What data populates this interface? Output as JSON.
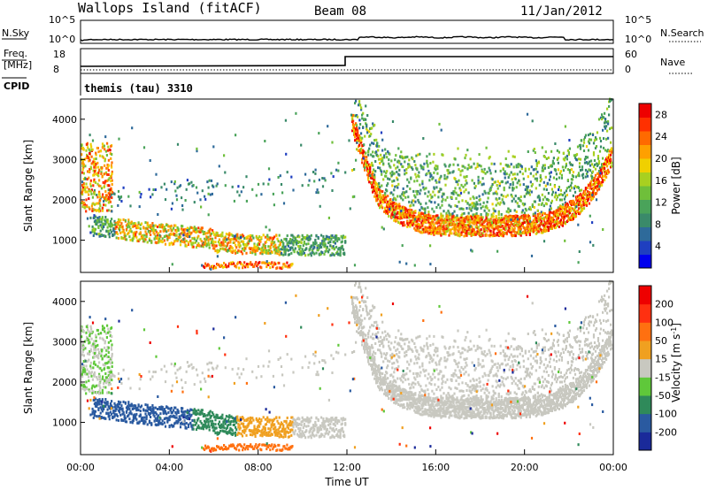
{
  "header": {
    "station": "Wallops Island (fitACF)",
    "beam": "Beam 08",
    "date": "11/Jan/2012"
  },
  "noise_panel": {
    "left_label": "N.Sky",
    "right_label": "N.Search",
    "ticks": [
      "10^5",
      "10^0"
    ]
  },
  "freq_panel": {
    "left_label_top": "Freq.",
    "left_label_bottom": "[MHz]",
    "left_ticks": [
      "18",
      "8"
    ],
    "right_label": "Nave",
    "right_ticks": [
      "60",
      "0"
    ],
    "cpid_label": "CPID",
    "cpid_text": "themis (tau) 3310"
  },
  "chart_data": [
    {
      "type": "heatmap",
      "name": "power",
      "ylabel": "Slant Range [km]",
      "xlabel": "",
      "ylim": [
        200,
        4500
      ],
      "xlim": [
        0,
        24
      ],
      "yticks": [
        "4000",
        "3000",
        "2000",
        "1000"
      ],
      "ytick_values": [
        4000,
        3000,
        2000,
        1000
      ],
      "colorbar": {
        "label": "Power [dB]",
        "ticks": [
          "28",
          "24",
          "20",
          "16",
          "12",
          "8",
          "4"
        ],
        "tick_values": [
          28,
          24,
          20,
          16,
          12,
          8,
          4
        ],
        "range": [
          0,
          30
        ],
        "colors": [
          "#0000ee",
          "#1f3fc0",
          "#2e6a9a",
          "#3a8a6a",
          "#4aa35a",
          "#6fbf3a",
          "#a8d020",
          "#f0d000",
          "#ffa000",
          "#ff6a00",
          "#ff3000",
          "#ee0000"
        ]
      }
    },
    {
      "type": "heatmap",
      "name": "velocity",
      "ylabel": "Slant Range [km]",
      "xlabel": "Time UT",
      "ylim": [
        200,
        4500
      ],
      "xlim": [
        0,
        24
      ],
      "yticks": [
        "4000",
        "3000",
        "2000",
        "1000"
      ],
      "ytick_values": [
        4000,
        3000,
        2000,
        1000
      ],
      "xticks": [
        "00:00",
        "04:00",
        "08:00",
        "12:00",
        "16:00",
        "20:00",
        "00:00"
      ],
      "xtick_values": [
        0,
        4,
        8,
        12,
        16,
        20,
        24
      ],
      "colorbar": {
        "label_main": "Velocity [m s",
        "label_sup": "-1",
        "label_end": "]",
        "ticks": [
          "200",
          "100",
          "50",
          "15",
          "-15",
          "-50",
          "-100",
          "-200"
        ],
        "colors": [
          "#1a2a9a",
          "#2a5aa0",
          "#2f8a5a",
          "#5fc83a",
          "#c8c8c0",
          "#f0a020",
          "#ff7010",
          "#ff3010",
          "#ee0000"
        ]
      }
    }
  ]
}
